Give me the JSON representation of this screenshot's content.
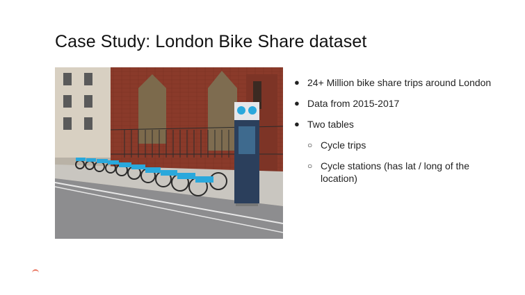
{
  "slide": {
    "title": "Case Study: London Bike Share dataset",
    "bullets": [
      {
        "text": "24+ Million bike share trips around London"
      },
      {
        "text": "Data from 2015-2017"
      },
      {
        "text": "Two tables"
      }
    ],
    "sub_bullets": [
      {
        "text": "Cycle trips"
      },
      {
        "text": "Cycle stations (has lat / long of the location)"
      }
    ]
  },
  "photo": {
    "subject": "london-bike-share-docking-station"
  },
  "colors": {
    "title": "#111111",
    "text": "#222222",
    "bike_blue": "#2aa8dc",
    "brick": "#8a3a2a"
  }
}
